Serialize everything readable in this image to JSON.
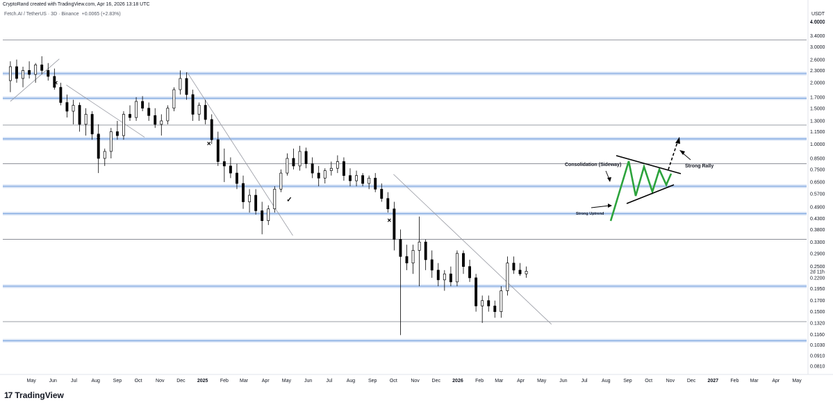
{
  "header": {
    "credit": "CryptoRand created with TradingView.com, Apr 16, 2026 13:18 UTC",
    "symbol": "Fetch.AI / TetherUS · 3D · Binance",
    "change": "+0.0065 (+2.83%)"
  },
  "brand": {
    "name": "TradingView",
    "logo_icon": "tradingview-logo-icon"
  },
  "chart_data": {
    "type": "candlestick",
    "y_scale": "log",
    "currency_label": "USDT",
    "ylim": [
      0.075,
      5.2
    ],
    "y_ticks": [
      "4.0000",
      "3.4000",
      "3.0000",
      "2.6000",
      "2.3000",
      "2.0000",
      "1.7000",
      "1.5000",
      "1.3000",
      "1.1500",
      "1.0000",
      "0.8500",
      "0.7500",
      "0.6500",
      "0.5700",
      "0.4900",
      "0.4300",
      "0.3800",
      "0.3300",
      "0.2900",
      "0.2500",
      "0.2200",
      "0.1950",
      "0.1700",
      "0.1500",
      "0.1320",
      "0.1160",
      "0.1030",
      "0.0910",
      "0.0810"
    ],
    "y_top_partial": "4.6000",
    "last_price_labels": [
      "2d 11h"
    ],
    "x_ticks": [
      {
        "label": "May",
        "bold": false
      },
      {
        "label": "Jun",
        "bold": false
      },
      {
        "label": "Jul",
        "bold": false
      },
      {
        "label": "Aug",
        "bold": false
      },
      {
        "label": "Sep",
        "bold": false
      },
      {
        "label": "Oct",
        "bold": false
      },
      {
        "label": "Nov",
        "bold": false
      },
      {
        "label": "Dec",
        "bold": false
      },
      {
        "label": "2025",
        "bold": true
      },
      {
        "label": "Feb",
        "bold": false
      },
      {
        "label": "Mar",
        "bold": false
      },
      {
        "label": "Apr",
        "bold": false
      },
      {
        "label": "May",
        "bold": false
      },
      {
        "label": "Jun",
        "bold": false
      },
      {
        "label": "Jul",
        "bold": false
      },
      {
        "label": "Aug",
        "bold": false
      },
      {
        "label": "Sep",
        "bold": false
      },
      {
        "label": "Oct",
        "bold": false
      },
      {
        "label": "Nov",
        "bold": false
      },
      {
        "label": "Dec",
        "bold": false
      },
      {
        "label": "2026",
        "bold": true
      },
      {
        "label": "Feb",
        "bold": false
      },
      {
        "label": "Mar",
        "bold": false
      },
      {
        "label": "Apr",
        "bold": false
      },
      {
        "label": "May",
        "bold": false
      },
      {
        "label": "Jun",
        "bold": false
      },
      {
        "label": "Jul",
        "bold": false
      },
      {
        "label": "Aug",
        "bold": false
      },
      {
        "label": "Sep",
        "bold": false
      },
      {
        "label": "Oct",
        "bold": false
      },
      {
        "label": "Nov",
        "bold": false
      },
      {
        "label": "Dec",
        "bold": false
      },
      {
        "label": "2027",
        "bold": true
      },
      {
        "label": "Feb",
        "bold": false
      },
      {
        "label": "Mar",
        "bold": false
      },
      {
        "label": "Apr",
        "bold": false
      },
      {
        "label": "May",
        "bold": false
      }
    ],
    "horizontal_levels": [
      {
        "price": 3.25,
        "style": "thin"
      },
      {
        "price": 2.22,
        "style": "band"
      },
      {
        "price": 1.68,
        "style": "band"
      },
      {
        "price": 1.24,
        "style": "thin"
      },
      {
        "price": 1.06,
        "style": "band"
      },
      {
        "price": 0.8,
        "style": "thin"
      },
      {
        "price": 0.62,
        "style": "band"
      },
      {
        "price": 0.455,
        "style": "band"
      },
      {
        "price": 0.34,
        "style": "thin"
      },
      {
        "price": 0.2,
        "style": "band"
      },
      {
        "price": 0.134,
        "style": "thin"
      },
      {
        "price": 0.108,
        "style": "band"
      }
    ],
    "trendlines": [
      {
        "from": [
          "2024-04-01",
          1.62
        ],
        "to": [
          "2024-06-10",
          2.62
        ]
      },
      {
        "from": [
          "2024-06-20",
          1.95
        ],
        "to": [
          "2024-10-10",
          1.08
        ]
      },
      {
        "from": [
          "2024-12-10",
          2.25
        ],
        "to": [
          "2025-05-10",
          0.355
        ]
      },
      {
        "from": [
          "2025-10-01",
          0.71
        ],
        "to": [
          "2026-05-15",
          0.13
        ]
      }
    ],
    "markers": [
      {
        "date": "2024-06-05",
        "price": 1.95,
        "symbol": "×"
      },
      {
        "date": "2024-08-05",
        "price": 1.05,
        "symbol": "×"
      },
      {
        "date": "2025-01-10",
        "price": 0.98,
        "symbol": "×"
      },
      {
        "date": "2025-05-05",
        "price": 0.52,
        "symbol": "✓"
      },
      {
        "date": "2025-09-25",
        "price": 0.41,
        "symbol": "×"
      }
    ],
    "candles": [
      {
        "date": "2024-04-01",
        "o": 2.05,
        "h": 2.55,
        "l": 1.8,
        "c": 2.4
      },
      {
        "date": "2024-04-10",
        "o": 2.4,
        "h": 2.6,
        "l": 2.0,
        "c": 2.1
      },
      {
        "date": "2024-04-19",
        "o": 2.1,
        "h": 2.4,
        "l": 1.9,
        "c": 2.3
      },
      {
        "date": "2024-04-28",
        "o": 2.3,
        "h": 2.55,
        "l": 2.1,
        "c": 2.2
      },
      {
        "date": "2024-05-07",
        "o": 2.2,
        "h": 2.5,
        "l": 2.0,
        "c": 2.45
      },
      {
        "date": "2024-05-16",
        "o": 2.45,
        "h": 2.7,
        "l": 2.2,
        "c": 2.3
      },
      {
        "date": "2024-05-25",
        "o": 2.3,
        "h": 2.5,
        "l": 2.05,
        "c": 2.15
      },
      {
        "date": "2024-06-03",
        "o": 2.15,
        "h": 2.35,
        "l": 1.85,
        "c": 1.9
      },
      {
        "date": "2024-06-12",
        "o": 1.9,
        "h": 2.0,
        "l": 1.55,
        "c": 1.6
      },
      {
        "date": "2024-06-21",
        "o": 1.6,
        "h": 1.75,
        "l": 1.35,
        "c": 1.45
      },
      {
        "date": "2024-06-30",
        "o": 1.45,
        "h": 1.65,
        "l": 1.25,
        "c": 1.55
      },
      {
        "date": "2024-07-09",
        "o": 1.55,
        "h": 1.6,
        "l": 1.15,
        "c": 1.25
      },
      {
        "date": "2024-07-18",
        "o": 1.25,
        "h": 1.5,
        "l": 1.1,
        "c": 1.4
      },
      {
        "date": "2024-07-27",
        "o": 1.4,
        "h": 1.45,
        "l": 1.05,
        "c": 1.12
      },
      {
        "date": "2024-08-05",
        "o": 1.12,
        "h": 1.25,
        "l": 0.72,
        "c": 0.85
      },
      {
        "date": "2024-08-14",
        "o": 0.85,
        "h": 0.95,
        "l": 0.78,
        "c": 0.92
      },
      {
        "date": "2024-08-23",
        "o": 0.92,
        "h": 1.2,
        "l": 0.85,
        "c": 1.15
      },
      {
        "date": "2024-09-01",
        "o": 1.15,
        "h": 1.3,
        "l": 1.05,
        "c": 1.1
      },
      {
        "date": "2024-09-10",
        "o": 1.1,
        "h": 1.45,
        "l": 1.05,
        "c": 1.4
      },
      {
        "date": "2024-09-19",
        "o": 1.4,
        "h": 1.55,
        "l": 1.3,
        "c": 1.35
      },
      {
        "date": "2024-09-28",
        "o": 1.35,
        "h": 1.7,
        "l": 1.3,
        "c": 1.62
      },
      {
        "date": "2024-10-07",
        "o": 1.62,
        "h": 1.72,
        "l": 1.45,
        "c": 1.5
      },
      {
        "date": "2024-10-16",
        "o": 1.5,
        "h": 1.6,
        "l": 1.3,
        "c": 1.38
      },
      {
        "date": "2024-10-25",
        "o": 1.38,
        "h": 1.5,
        "l": 1.2,
        "c": 1.25
      },
      {
        "date": "2024-11-03",
        "o": 1.25,
        "h": 1.4,
        "l": 1.1,
        "c": 1.3
      },
      {
        "date": "2024-11-12",
        "o": 1.3,
        "h": 1.55,
        "l": 1.25,
        "c": 1.5
      },
      {
        "date": "2024-11-21",
        "o": 1.5,
        "h": 1.9,
        "l": 1.45,
        "c": 1.85
      },
      {
        "date": "2024-11-30",
        "o": 1.85,
        "h": 2.3,
        "l": 1.75,
        "c": 2.1
      },
      {
        "date": "2024-12-09",
        "o": 2.1,
        "h": 2.25,
        "l": 1.65,
        "c": 1.75
      },
      {
        "date": "2024-12-18",
        "o": 1.75,
        "h": 1.85,
        "l": 1.3,
        "c": 1.4
      },
      {
        "date": "2024-12-27",
        "o": 1.4,
        "h": 1.6,
        "l": 1.3,
        "c": 1.55
      },
      {
        "date": "2025-01-05",
        "o": 1.55,
        "h": 1.65,
        "l": 1.25,
        "c": 1.32
      },
      {
        "date": "2025-01-14",
        "o": 1.32,
        "h": 1.4,
        "l": 1.0,
        "c": 1.05
      },
      {
        "date": "2025-01-23",
        "o": 1.05,
        "h": 1.15,
        "l": 0.78,
        "c": 0.82
      },
      {
        "date": "2025-02-01",
        "o": 0.82,
        "h": 0.95,
        "l": 0.65,
        "c": 0.78
      },
      {
        "date": "2025-02-10",
        "o": 0.78,
        "h": 0.86,
        "l": 0.68,
        "c": 0.72
      },
      {
        "date": "2025-02-19",
        "o": 0.72,
        "h": 0.8,
        "l": 0.6,
        "c": 0.64
      },
      {
        "date": "2025-02-28",
        "o": 0.64,
        "h": 0.7,
        "l": 0.48,
        "c": 0.52
      },
      {
        "date": "2025-03-09",
        "o": 0.52,
        "h": 0.6,
        "l": 0.46,
        "c": 0.56
      },
      {
        "date": "2025-03-18",
        "o": 0.56,
        "h": 0.6,
        "l": 0.45,
        "c": 0.47
      },
      {
        "date": "2025-03-27",
        "o": 0.47,
        "h": 0.52,
        "l": 0.36,
        "c": 0.42
      },
      {
        "date": "2025-04-05",
        "o": 0.42,
        "h": 0.5,
        "l": 0.4,
        "c": 0.48
      },
      {
        "date": "2025-04-14",
        "o": 0.48,
        "h": 0.62,
        "l": 0.46,
        "c": 0.6
      },
      {
        "date": "2025-04-23",
        "o": 0.6,
        "h": 0.75,
        "l": 0.58,
        "c": 0.72
      },
      {
        "date": "2025-05-02",
        "o": 0.72,
        "h": 0.9,
        "l": 0.7,
        "c": 0.85
      },
      {
        "date": "2025-05-11",
        "o": 0.85,
        "h": 0.95,
        "l": 0.75,
        "c": 0.78
      },
      {
        "date": "2025-05-20",
        "o": 0.78,
        "h": 0.98,
        "l": 0.74,
        "c": 0.92
      },
      {
        "date": "2025-05-29",
        "o": 0.92,
        "h": 0.96,
        "l": 0.76,
        "c": 0.8
      },
      {
        "date": "2025-06-07",
        "o": 0.8,
        "h": 0.86,
        "l": 0.68,
        "c": 0.72
      },
      {
        "date": "2025-06-16",
        "o": 0.72,
        "h": 0.78,
        "l": 0.62,
        "c": 0.68
      },
      {
        "date": "2025-06-25",
        "o": 0.68,
        "h": 0.76,
        "l": 0.64,
        "c": 0.74
      },
      {
        "date": "2025-07-04",
        "o": 0.74,
        "h": 0.82,
        "l": 0.7,
        "c": 0.76
      },
      {
        "date": "2025-07-13",
        "o": 0.76,
        "h": 0.88,
        "l": 0.72,
        "c": 0.82
      },
      {
        "date": "2025-07-22",
        "o": 0.82,
        "h": 0.86,
        "l": 0.66,
        "c": 0.7
      },
      {
        "date": "2025-07-31",
        "o": 0.7,
        "h": 0.76,
        "l": 0.62,
        "c": 0.66
      },
      {
        "date": "2025-08-09",
        "o": 0.66,
        "h": 0.74,
        "l": 0.62,
        "c": 0.7
      },
      {
        "date": "2025-08-18",
        "o": 0.7,
        "h": 0.72,
        "l": 0.62,
        "c": 0.64
      },
      {
        "date": "2025-08-27",
        "o": 0.64,
        "h": 0.7,
        "l": 0.6,
        "c": 0.68
      },
      {
        "date": "2025-09-05",
        "o": 0.68,
        "h": 0.72,
        "l": 0.58,
        "c": 0.6
      },
      {
        "date": "2025-09-14",
        "o": 0.6,
        "h": 0.64,
        "l": 0.52,
        "c": 0.54
      },
      {
        "date": "2025-09-23",
        "o": 0.54,
        "h": 0.58,
        "l": 0.46,
        "c": 0.48
      },
      {
        "date": "2025-10-02",
        "o": 0.48,
        "h": 0.52,
        "l": 0.3,
        "c": 0.34
      },
      {
        "date": "2025-10-11",
        "o": 0.34,
        "h": 0.38,
        "l": 0.115,
        "c": 0.28
      },
      {
        "date": "2025-10-20",
        "o": 0.28,
        "h": 0.32,
        "l": 0.24,
        "c": 0.26
      },
      {
        "date": "2025-10-29",
        "o": 0.26,
        "h": 0.32,
        "l": 0.23,
        "c": 0.3
      },
      {
        "date": "2025-11-07",
        "o": 0.3,
        "h": 0.44,
        "l": 0.2,
        "c": 0.33
      },
      {
        "date": "2025-11-16",
        "o": 0.33,
        "h": 0.34,
        "l": 0.24,
        "c": 0.27
      },
      {
        "date": "2025-11-25",
        "o": 0.27,
        "h": 0.3,
        "l": 0.22,
        "c": 0.24
      },
      {
        "date": "2025-12-04",
        "o": 0.24,
        "h": 0.26,
        "l": 0.2,
        "c": 0.215
      },
      {
        "date": "2025-12-13",
        "o": 0.215,
        "h": 0.24,
        "l": 0.19,
        "c": 0.23
      },
      {
        "date": "2025-12-22",
        "o": 0.23,
        "h": 0.25,
        "l": 0.2,
        "c": 0.21
      },
      {
        "date": "2025-12-31",
        "o": 0.21,
        "h": 0.3,
        "l": 0.2,
        "c": 0.29
      },
      {
        "date": "2026-01-09",
        "o": 0.29,
        "h": 0.3,
        "l": 0.23,
        "c": 0.25
      },
      {
        "date": "2026-01-18",
        "o": 0.25,
        "h": 0.27,
        "l": 0.21,
        "c": 0.22
      },
      {
        "date": "2026-01-27",
        "o": 0.22,
        "h": 0.23,
        "l": 0.15,
        "c": 0.16
      },
      {
        "date": "2026-02-05",
        "o": 0.16,
        "h": 0.18,
        "l": 0.132,
        "c": 0.17
      },
      {
        "date": "2026-02-14",
        "o": 0.17,
        "h": 0.18,
        "l": 0.15,
        "c": 0.16
      },
      {
        "date": "2026-02-23",
        "o": 0.16,
        "h": 0.17,
        "l": 0.14,
        "c": 0.15
      },
      {
        "date": "2026-03-04",
        "o": 0.15,
        "h": 0.2,
        "l": 0.14,
        "c": 0.19
      },
      {
        "date": "2026-03-13",
        "o": 0.19,
        "h": 0.28,
        "l": 0.18,
        "c": 0.26
      },
      {
        "date": "2026-03-22",
        "o": 0.26,
        "h": 0.28,
        "l": 0.23,
        "c": 0.24
      },
      {
        "date": "2026-03-31",
        "o": 0.24,
        "h": 0.26,
        "l": 0.225,
        "c": 0.23
      },
      {
        "date": "2026-04-09",
        "o": 0.23,
        "h": 0.25,
        "l": 0.22,
        "c": 0.237
      }
    ],
    "pattern_annotation": {
      "label_consolidation": "Consolidation (Sideway)",
      "label_uptrend": "Strong Uptrend",
      "label_rally": "Strong Rally",
      "color": "#2ca33c"
    }
  }
}
